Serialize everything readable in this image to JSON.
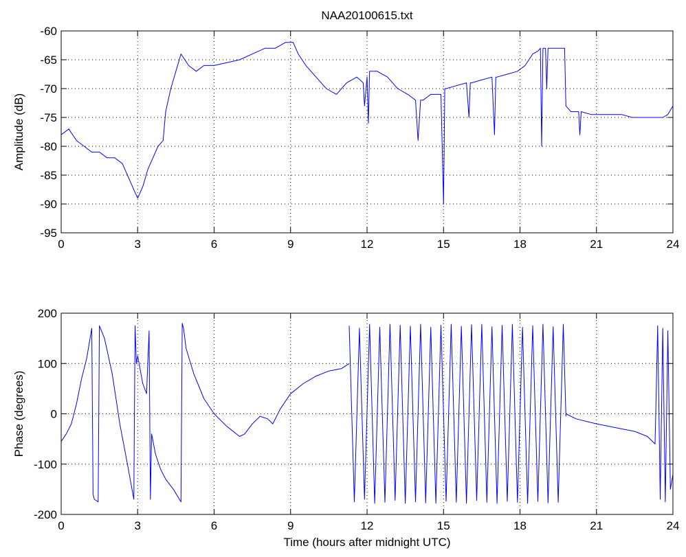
{
  "figure": {
    "title": "NAA20100615.txt"
  },
  "chart_data": [
    {
      "type": "line",
      "title": "NAA20100615.txt",
      "xlabel": "",
      "ylabel": "Amplitude (dB)",
      "xlim": [
        0,
        24
      ],
      "ylim": [
        -95,
        -60
      ],
      "xticks": [
        0,
        3,
        6,
        9,
        12,
        15,
        18,
        21,
        24
      ],
      "yticks": [
        -95,
        -90,
        -85,
        -80,
        -75,
        -70,
        -65,
        -60
      ],
      "grid": true,
      "line_color": "#0000ff",
      "series": [
        {
          "x": [
            0,
            0.3,
            0.6,
            0.9,
            1.2,
            1.5,
            1.8,
            2.1,
            2.4,
            2.7,
            2.9,
            3.0,
            3.2,
            3.4,
            3.6,
            3.8,
            4.0,
            4.1,
            4.3,
            4.5,
            4.7,
            5.0,
            5.3,
            5.6,
            6.0,
            6.5,
            7.0,
            7.5,
            8.0,
            8.4,
            8.8,
            9.1,
            9.3,
            9.6,
            10.0,
            10.4,
            10.8,
            11.2,
            11.6,
            11.85,
            11.9,
            12.0,
            12.05,
            12.1,
            12.4,
            12.8,
            13.2,
            13.6,
            13.9,
            14.0,
            14.1,
            14.2,
            14.5,
            14.9,
            15.0,
            15.05,
            15.1,
            15.5,
            15.9,
            16.0,
            16.05,
            16.1,
            16.5,
            16.9,
            17.0,
            17.05,
            17.1,
            17.5,
            17.9,
            18.2,
            18.5,
            18.7,
            18.8,
            18.85,
            18.9,
            19.0,
            19.05,
            19.1,
            19.2,
            19.5,
            19.75,
            19.8,
            20.0,
            20.3,
            20.35,
            20.4,
            20.8,
            21.2,
            21.6,
            22.0,
            22.4,
            22.8,
            23.2,
            23.6,
            23.8,
            24.0
          ],
          "y": [
            -78,
            -77,
            -79,
            -80,
            -81,
            -81,
            -82,
            -82,
            -83,
            -86,
            -88,
            -89,
            -87,
            -84,
            -82,
            -80,
            -79,
            -74,
            -70,
            -67,
            -64,
            -66,
            -67,
            -66,
            -66,
            -65.5,
            -65,
            -64,
            -63,
            -63,
            -62,
            -62,
            -64,
            -66,
            -68,
            -70,
            -71,
            -69,
            -68,
            -69,
            -73,
            -68,
            -76,
            -67,
            -67,
            -68,
            -70,
            -71,
            -72,
            -79,
            -72,
            -72,
            -71,
            -71,
            -90,
            -70,
            -70,
            -69.5,
            -69,
            -75,
            -69,
            -69,
            -68.5,
            -68,
            -78,
            -68,
            -68,
            -67.5,
            -67,
            -66,
            -64,
            -63.5,
            -63,
            -80,
            -63,
            -63,
            -70,
            -63,
            -63,
            -63,
            -63,
            -73,
            -74,
            -74,
            -78,
            -74,
            -74.5,
            -74.5,
            -74.5,
            -74.5,
            -75,
            -75,
            -75,
            -75,
            -74.5,
            -73
          ]
        }
      ]
    },
    {
      "type": "line",
      "title": "",
      "xlabel": "Time (hours after midnight UTC)",
      "ylabel": "Phase (degrees)",
      "xlim": [
        0,
        24
      ],
      "ylim": [
        -200,
        200
      ],
      "xticks": [
        0,
        3,
        6,
        9,
        12,
        15,
        18,
        21,
        24
      ],
      "yticks": [
        -200,
        -100,
        0,
        100,
        200
      ],
      "grid": true,
      "line_color": "#0000ff",
      "series": [
        {
          "x": [
            0,
            0.2,
            0.4,
            0.6,
            0.8,
            1.0,
            1.2,
            1.25,
            1.3,
            1.45,
            1.5,
            1.7,
            2.0,
            2.3,
            2.6,
            2.85,
            2.9,
            2.95,
            3.0,
            3.2,
            3.35,
            3.45,
            3.5,
            3.55,
            3.7,
            3.9,
            4.1,
            4.4,
            4.7,
            4.75,
            4.8,
            4.9,
            5.2,
            5.6,
            6.0,
            6.5,
            7.0,
            7.2,
            7.5,
            7.8,
            8.1,
            8.3,
            8.6,
            9.0,
            9.5,
            10.0,
            10.5,
            11.0,
            11.3
          ],
          "y": [
            -55,
            -40,
            -20,
            20,
            70,
            110,
            170,
            -160,
            -170,
            -175,
            175,
            150,
            80,
            -20,
            -100,
            -170,
            175,
            100,
            115,
            60,
            40,
            165,
            -170,
            -40,
            -80,
            -110,
            -130,
            -150,
            -175,
            180,
            170,
            130,
            80,
            30,
            0,
            -25,
            -45,
            -40,
            -20,
            -5,
            -10,
            -20,
            10,
            40,
            60,
            75,
            85,
            90,
            100
          ]
        },
        {
          "x": [
            11.3,
            11.5,
            11.7,
            11.9,
            12.1,
            12.3,
            12.5,
            12.7,
            12.9,
            13.1,
            13.3,
            13.5,
            13.7,
            13.9,
            14.1,
            14.3,
            14.5,
            14.7,
            14.9,
            15.1,
            15.3,
            15.5,
            15.7,
            15.9,
            16.1,
            16.3,
            16.5,
            16.7,
            16.9,
            17.1,
            17.3,
            17.5,
            17.7,
            17.9,
            18.1,
            18.3,
            18.5,
            18.7,
            18.9,
            19.1,
            19.3,
            19.5,
            19.7,
            19.8
          ],
          "y": [
            175,
            -175,
            170,
            -170,
            178,
            -178,
            172,
            -176,
            178,
            -172,
            176,
            -178,
            174,
            -175,
            178,
            -177,
            172,
            -178,
            176,
            -174,
            178,
            -176,
            174,
            -178,
            177,
            -172,
            178,
            -176,
            173,
            -178,
            176,
            -174,
            178,
            -176,
            172,
            -178,
            175,
            -174,
            178,
            -177,
            173,
            -176,
            178,
            -5
          ]
        },
        {
          "x": [
            19.8,
            20.2,
            20.6,
            21.0,
            21.5,
            22.0,
            22.5,
            23.0,
            23.3,
            23.4,
            23.5,
            23.6,
            23.7,
            23.8,
            23.9,
            24.0
          ],
          "y": [
            0,
            -10,
            -15,
            -20,
            -25,
            -30,
            -35,
            -45,
            -60,
            175,
            -170,
            170,
            -175,
            165,
            -150,
            -120
          ]
        }
      ]
    }
  ]
}
